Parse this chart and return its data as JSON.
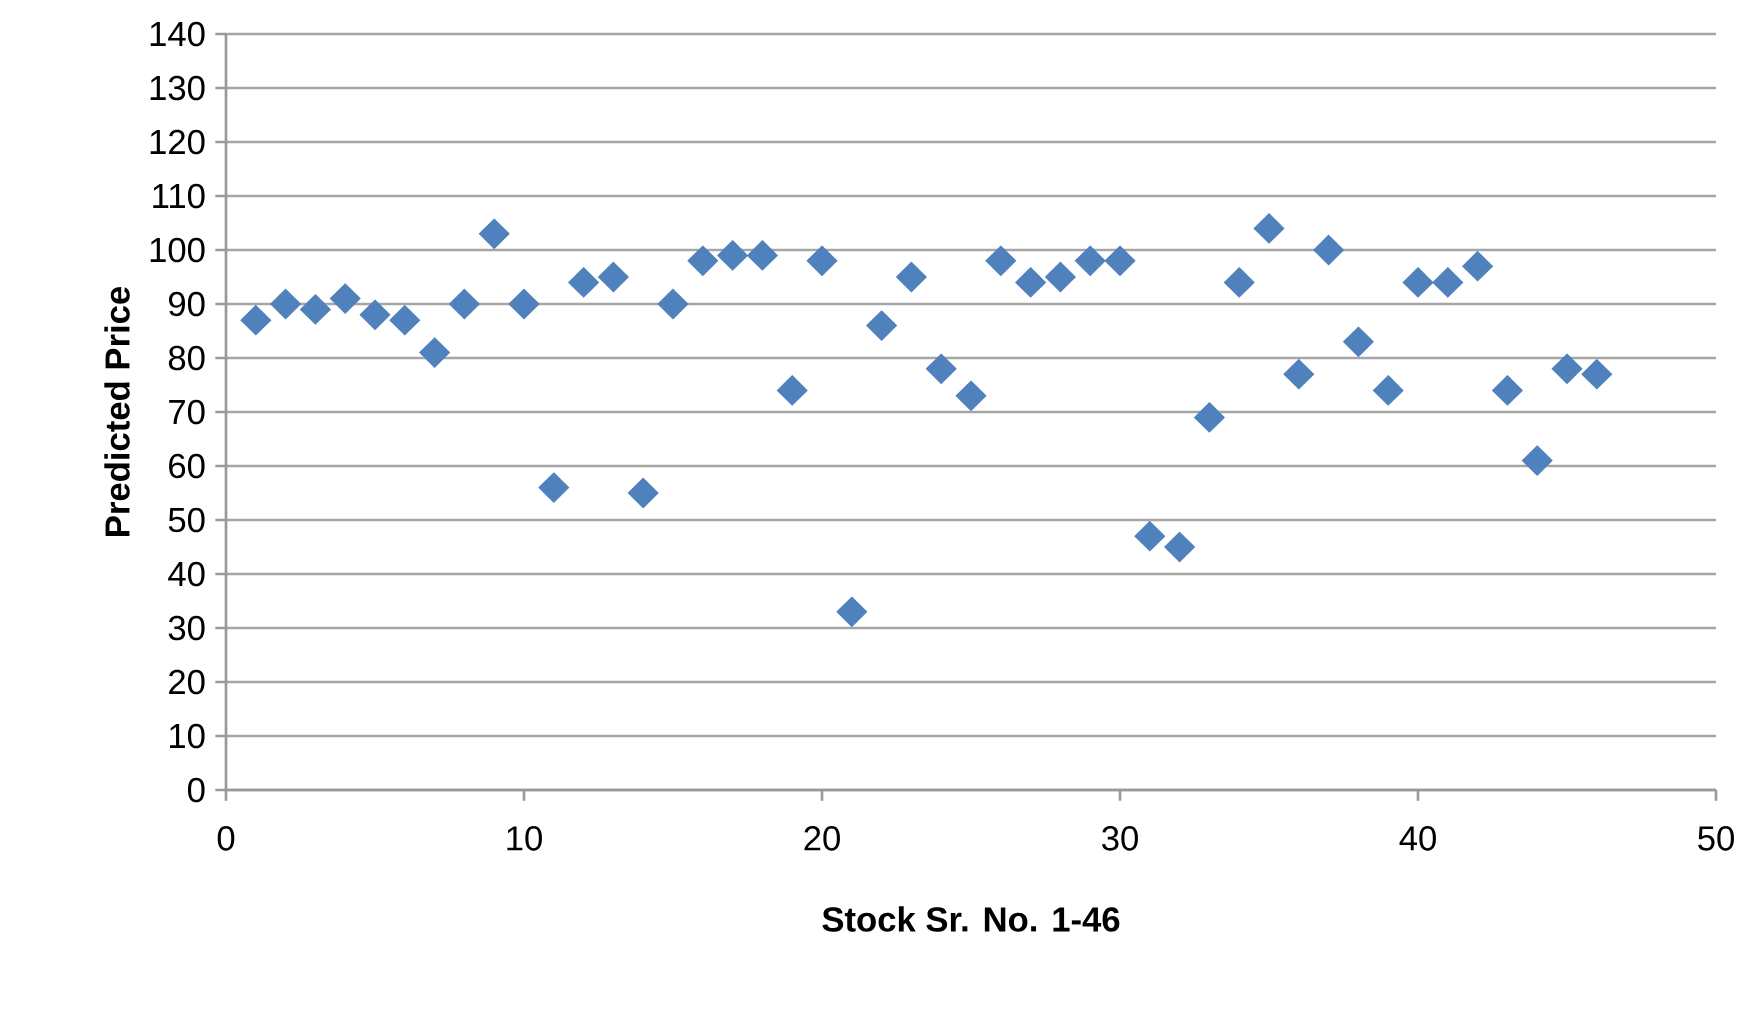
{
  "chart_data": {
    "type": "scatter",
    "xlabel": "Stock Sr. No. 1-46",
    "ylabel": "Predicted Price",
    "x": [
      1,
      2,
      3,
      4,
      5,
      6,
      7,
      8,
      9,
      10,
      11,
      12,
      13,
      14,
      15,
      16,
      17,
      18,
      19,
      20,
      21,
      22,
      23,
      24,
      25,
      26,
      27,
      28,
      29,
      30,
      31,
      32,
      33,
      34,
      35,
      36,
      37,
      38,
      39,
      40,
      41,
      42,
      43,
      44,
      45,
      46
    ],
    "series": [
      {
        "color": "#4f81bd",
        "values": [
          87,
          90,
          89,
          91,
          88,
          87,
          81,
          90,
          103,
          90,
          56,
          94,
          95,
          55,
          90,
          98,
          99,
          99,
          74,
          98,
          33,
          86,
          95,
          78,
          73,
          98,
          94,
          95,
          98,
          98,
          47,
          45,
          69,
          94,
          104,
          77,
          100,
          83,
          74,
          94,
          94,
          97,
          74,
          61,
          78,
          77
        ]
      }
    ],
    "xlim": [
      0,
      50
    ],
    "xticks": [
      0,
      10,
      20,
      30,
      40,
      50
    ],
    "ylim": [
      0,
      140
    ],
    "yticks": [
      0,
      10,
      20,
      30,
      40,
      50,
      60,
      70,
      80,
      90,
      100,
      110,
      120,
      130,
      140
    ],
    "grid": "y",
    "marker": "diamond"
  }
}
